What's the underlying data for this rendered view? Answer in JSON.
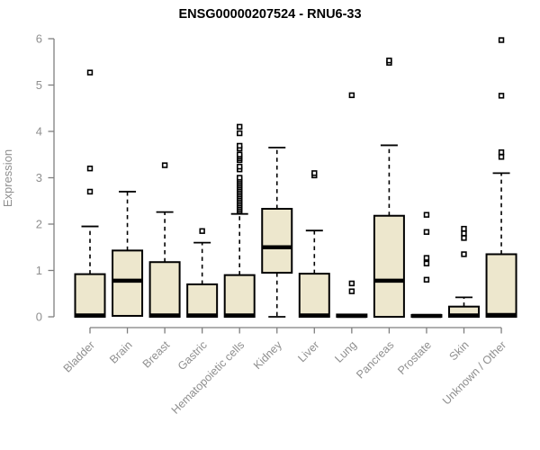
{
  "chart_data": {
    "type": "boxplot",
    "title": "ENSG00000207524 - RNU6-33",
    "ylabel": "Expression",
    "xlabel": "",
    "ylim": [
      0,
      6
    ],
    "yticks": [
      0,
      1,
      2,
      3,
      4,
      5,
      6
    ],
    "grid": false,
    "legend": null,
    "categories": [
      "Bladder",
      "Brain",
      "Breast",
      "Gastric",
      "Hematopoietic cells",
      "Kidney",
      "Liver",
      "Lung",
      "Pancreas",
      "Prostate",
      "Skin",
      "Unknown / Other"
    ],
    "boxes": [
      {
        "category": "Bladder",
        "low": 0,
        "q1": 0,
        "median": 0.03,
        "q3": 0.92,
        "high": 1.95,
        "outliers": [
          2.7,
          3.2,
          5.27
        ]
      },
      {
        "category": "Brain",
        "low": 0,
        "q1": 0.02,
        "median": 0.78,
        "q3": 1.43,
        "high": 2.7,
        "outliers": []
      },
      {
        "category": "Breast",
        "low": 0,
        "q1": 0,
        "median": 0.03,
        "q3": 1.18,
        "high": 2.26,
        "outliers": [
          3.27
        ]
      },
      {
        "category": "Gastric",
        "low": 0,
        "q1": 0,
        "median": 0.03,
        "q3": 0.7,
        "high": 1.6,
        "outliers": [
          1.85
        ]
      },
      {
        "category": "Hematopoietic cells",
        "low": 0,
        "q1": 0,
        "median": 0.03,
        "q3": 0.9,
        "high": 2.22,
        "outliers": [
          2.28,
          2.32,
          2.36,
          2.4,
          2.44,
          2.48,
          2.52,
          2.56,
          2.6,
          2.64,
          2.68,
          2.72,
          2.76,
          2.8,
          2.84,
          2.88,
          2.92,
          2.96,
          3.0,
          3.18,
          3.24,
          3.38,
          3.42,
          3.46,
          3.5,
          3.63,
          3.69,
          3.96,
          4.1
        ]
      },
      {
        "category": "Kidney",
        "low": 0,
        "q1": 0.95,
        "median": 1.5,
        "q3": 2.33,
        "high": 3.65,
        "outliers": []
      },
      {
        "category": "Liver",
        "low": 0,
        "q1": 0,
        "median": 0.03,
        "q3": 0.93,
        "high": 1.86,
        "outliers": [
          3.05,
          3.1
        ]
      },
      {
        "category": "Lung",
        "low": 0,
        "q1": 0,
        "median": 0.02,
        "q3": 0.05,
        "high": 0.05,
        "outliers": [
          0.55,
          0.72,
          4.78
        ]
      },
      {
        "category": "Pancreas",
        "low": 0,
        "q1": 0,
        "median": 0.78,
        "q3": 2.18,
        "high": 3.7,
        "outliers": [
          5.48,
          5.53
        ]
      },
      {
        "category": "Prostate",
        "low": 0,
        "q1": 0,
        "median": 0.02,
        "q3": 0.04,
        "high": 0.04,
        "outliers": [
          0.8,
          1.15,
          1.27,
          1.83,
          2.2
        ]
      },
      {
        "category": "Skin",
        "low": 0,
        "q1": 0,
        "median": 0.03,
        "q3": 0.22,
        "high": 0.42,
        "outliers": [
          1.35,
          1.7,
          1.8,
          1.9
        ]
      },
      {
        "category": "Unknown / Other",
        "low": 0,
        "q1": 0,
        "median": 0.04,
        "q3": 1.35,
        "high": 3.1,
        "outliers": [
          3.45,
          3.55,
          4.77,
          5.97
        ]
      }
    ],
    "colors": {
      "box_fill": "#EDE7CD",
      "box_stroke": "#000000",
      "median": "#000000",
      "whisker": "#000000",
      "axis": "#7F7F7F",
      "tick_text": "#8F8F8F",
      "title": "#000000"
    }
  }
}
